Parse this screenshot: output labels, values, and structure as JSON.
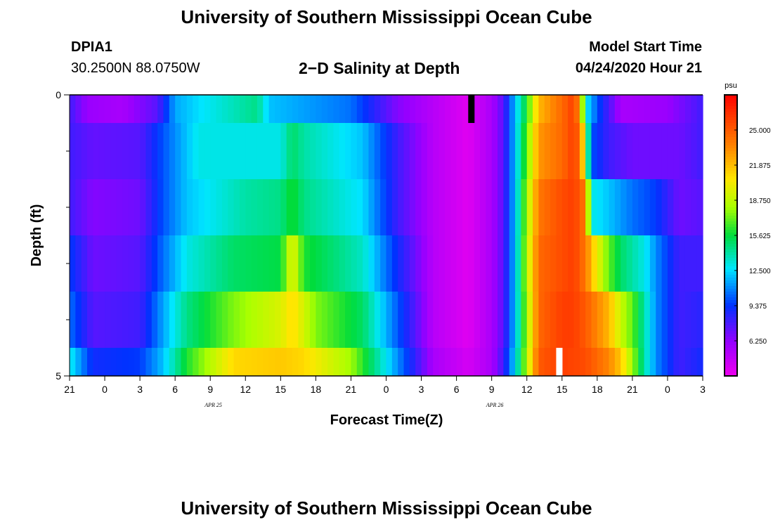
{
  "page": {
    "title": "University of Southern Mississippi Ocean Cube",
    "footer_title": "University of Southern Mississippi Ocean Cube",
    "station": "DPIA1",
    "coords": "30.2500N 88.0750W",
    "subtitle": "2−D Salinity at Depth",
    "start_label": "Model Start Time",
    "start_time": "04/24/2020 Hour 21"
  },
  "chart_data": {
    "type": "heatmap",
    "title": "2-D Salinity at Depth",
    "xlabel": "Forecast Time(Z)",
    "ylabel": "Depth (ft)",
    "x_tick_labels": [
      "21",
      "0",
      "3",
      "6",
      "9",
      "12",
      "15",
      "18",
      "21",
      "0",
      "3",
      "6",
      "9",
      "12",
      "15",
      "18",
      "21",
      "0",
      "3"
    ],
    "x_range_hours": [
      0,
      54
    ],
    "date_labels": [
      {
        "label": "APR 25",
        "hour": 15
      },
      {
        "label": "APR 26",
        "hour": 39
      }
    ],
    "y_tick_labels": [
      "0",
      "5"
    ],
    "y_range_ft": [
      0,
      5
    ],
    "y_minor_ticks_ft": [
      1,
      2,
      3,
      4
    ],
    "colorbar": {
      "unit": "psu",
      "min": 3.125,
      "max": 28.125,
      "tick_labels": [
        "25.000",
        "21.875",
        "18.750",
        "15.625",
        "12.500",
        "9.375",
        "6.250"
      ],
      "tick_values": [
        25.0,
        21.875,
        18.75,
        15.625,
        12.5,
        9.375,
        6.25
      ]
    },
    "rows": [
      {
        "depth_ft": [
          0,
          0.5
        ],
        "keys": [
          {
            "h": 0,
            "v": 8.0
          },
          {
            "h": 1.5,
            "v": 6.0
          },
          {
            "h": 4.5,
            "v": 5.5
          },
          {
            "h": 7.5,
            "v": 7.5
          },
          {
            "h": 9,
            "v": 11.5
          },
          {
            "h": 11,
            "v": 12.5
          },
          {
            "h": 16,
            "v": 14.5
          },
          {
            "h": 17,
            "v": 12.0
          },
          {
            "h": 24,
            "v": 10.5
          },
          {
            "h": 28,
            "v": 6.5
          },
          {
            "h": 31,
            "v": 5.0
          },
          {
            "h": 34,
            "v": 3.6
          },
          {
            "h": 36,
            "v": 5.5
          },
          {
            "h": 37,
            "v": 7.5
          },
          {
            "h": 38,
            "v": 12.0
          },
          {
            "h": 39,
            "v": 16.0
          },
          {
            "h": 40,
            "v": 22.0
          },
          {
            "h": 42,
            "v": 24.5
          },
          {
            "h": 43,
            "v": 26.0
          },
          {
            "h": 43.5,
            "v": 23.0
          },
          {
            "h": 44,
            "v": 13.0
          },
          {
            "h": 45,
            "v": 10.0
          },
          {
            "h": 47,
            "v": 5.5
          },
          {
            "h": 51,
            "v": 6.0
          },
          {
            "h": 54,
            "v": 8.0
          }
        ]
      },
      {
        "depth_ft": [
          0.5,
          1.5
        ],
        "keys": [
          {
            "h": 0,
            "v": 8.0
          },
          {
            "h": 2,
            "v": 7.2
          },
          {
            "h": 6,
            "v": 7.5
          },
          {
            "h": 8,
            "v": 10.0
          },
          {
            "h": 11,
            "v": 13.0
          },
          {
            "h": 18,
            "v": 13.0
          },
          {
            "h": 19,
            "v": 15.0
          },
          {
            "h": 20,
            "v": 14.0
          },
          {
            "h": 25,
            "v": 12.0
          },
          {
            "h": 28,
            "v": 8.0
          },
          {
            "h": 31,
            "v": 5.0
          },
          {
            "h": 34,
            "v": 3.6
          },
          {
            "h": 36,
            "v": 5.5
          },
          {
            "h": 37,
            "v": 7.5
          },
          {
            "h": 38,
            "v": 12.0
          },
          {
            "h": 39,
            "v": 17.0
          },
          {
            "h": 40,
            "v": 23.0
          },
          {
            "h": 42,
            "v": 24.5
          },
          {
            "h": 43,
            "v": 26.0
          },
          {
            "h": 43.6,
            "v": 24.0
          },
          {
            "h": 44.5,
            "v": 10.0
          },
          {
            "h": 46,
            "v": 8.0
          },
          {
            "h": 48,
            "v": 7.0
          },
          {
            "h": 52,
            "v": 7.0
          },
          {
            "h": 54,
            "v": 8.0
          }
        ]
      },
      {
        "depth_ft": [
          1.5,
          2.5
        ],
        "keys": [
          {
            "h": 0,
            "v": 8.0
          },
          {
            "h": 2,
            "v": 6.5
          },
          {
            "h": 6,
            "v": 7.0
          },
          {
            "h": 8,
            "v": 10.0
          },
          {
            "h": 10,
            "v": 12.0
          },
          {
            "h": 15,
            "v": 14.0
          },
          {
            "h": 18,
            "v": 14.5
          },
          {
            "h": 19,
            "v": 16.0
          },
          {
            "h": 20,
            "v": 14.5
          },
          {
            "h": 25,
            "v": 12.5
          },
          {
            "h": 28,
            "v": 8.0
          },
          {
            "h": 31,
            "v": 5.0
          },
          {
            "h": 34,
            "v": 3.6
          },
          {
            "h": 36,
            "v": 5.5
          },
          {
            "h": 37,
            "v": 7.5
          },
          {
            "h": 38,
            "v": 12.0
          },
          {
            "h": 39,
            "v": 18.0
          },
          {
            "h": 40,
            "v": 24.0
          },
          {
            "h": 42,
            "v": 25.5
          },
          {
            "h": 43,
            "v": 26.0
          },
          {
            "h": 44,
            "v": 24.0
          },
          {
            "h": 44.5,
            "v": 13.0
          },
          {
            "h": 46,
            "v": 12.0
          },
          {
            "h": 48,
            "v": 10.5
          },
          {
            "h": 50,
            "v": 9.5
          },
          {
            "h": 52,
            "v": 7.0
          },
          {
            "h": 54,
            "v": 7.5
          }
        ]
      },
      {
        "depth_ft": [
          2.5,
          3.5
        ],
        "keys": [
          {
            "h": 0,
            "v": 9.5
          },
          {
            "h": 2,
            "v": 7.0
          },
          {
            "h": 6,
            "v": 7.5
          },
          {
            "h": 8,
            "v": 10.5
          },
          {
            "h": 10,
            "v": 13.0
          },
          {
            "h": 14,
            "v": 15.0
          },
          {
            "h": 18,
            "v": 15.5
          },
          {
            "h": 19,
            "v": 20.0
          },
          {
            "h": 20,
            "v": 16.0
          },
          {
            "h": 25,
            "v": 13.5
          },
          {
            "h": 28,
            "v": 9.0
          },
          {
            "h": 31,
            "v": 5.0
          },
          {
            "h": 34,
            "v": 3.6
          },
          {
            "h": 36,
            "v": 5.5
          },
          {
            "h": 37,
            "v": 7.5
          },
          {
            "h": 38,
            "v": 12.0
          },
          {
            "h": 39,
            "v": 18.5
          },
          {
            "h": 40,
            "v": 24.5
          },
          {
            "h": 42,
            "v": 25.5
          },
          {
            "h": 43,
            "v": 26.0
          },
          {
            "h": 44,
            "v": 24.0
          },
          {
            "h": 45,
            "v": 20.0
          },
          {
            "h": 46,
            "v": 17.0
          },
          {
            "h": 47,
            "v": 15.0
          },
          {
            "h": 49,
            "v": 13.0
          },
          {
            "h": 50,
            "v": 11.0
          },
          {
            "h": 52,
            "v": 8.0
          },
          {
            "h": 54,
            "v": 8.0
          }
        ]
      },
      {
        "depth_ft": [
          3.5,
          4.5
        ],
        "keys": [
          {
            "h": 0,
            "v": 10.5
          },
          {
            "h": 2,
            "v": 7.5
          },
          {
            "h": 6,
            "v": 8.0
          },
          {
            "h": 8,
            "v": 11.5
          },
          {
            "h": 10,
            "v": 14.5
          },
          {
            "h": 14,
            "v": 17.5
          },
          {
            "h": 18,
            "v": 19.5
          },
          {
            "h": 19,
            "v": 21.0
          },
          {
            "h": 21,
            "v": 17.5
          },
          {
            "h": 25,
            "v": 15.0
          },
          {
            "h": 28,
            "v": 10.0
          },
          {
            "h": 31,
            "v": 5.0
          },
          {
            "h": 34,
            "v": 3.6
          },
          {
            "h": 36,
            "v": 5.5
          },
          {
            "h": 37,
            "v": 7.5
          },
          {
            "h": 38,
            "v": 12.0
          },
          {
            "h": 39,
            "v": 18.0
          },
          {
            "h": 40,
            "v": 24.5
          },
          {
            "h": 42,
            "v": 26.0
          },
          {
            "h": 43,
            "v": 26.0
          },
          {
            "h": 44,
            "v": 25.0
          },
          {
            "h": 46,
            "v": 22.0
          },
          {
            "h": 47,
            "v": 19.0
          },
          {
            "h": 48,
            "v": 17.0
          },
          {
            "h": 49,
            "v": 14.0
          },
          {
            "h": 50,
            "v": 11.0
          },
          {
            "h": 52,
            "v": 8.0
          },
          {
            "h": 54,
            "v": 8.5
          }
        ]
      },
      {
        "depth_ft": [
          4.5,
          5
        ],
        "keys": [
          {
            "h": 0,
            "v": 13.0
          },
          {
            "h": 2,
            "v": 9.0
          },
          {
            "h": 6,
            "v": 9.5
          },
          {
            "h": 8,
            "v": 12.0
          },
          {
            "h": 10,
            "v": 16.0
          },
          {
            "h": 14,
            "v": 21.0
          },
          {
            "h": 18,
            "v": 21.5
          },
          {
            "h": 20,
            "v": 21.0
          },
          {
            "h": 24,
            "v": 18.0
          },
          {
            "h": 28,
            "v": 11.0
          },
          {
            "h": 31,
            "v": 5.5
          },
          {
            "h": 34,
            "v": 4.0
          },
          {
            "h": 36,
            "v": 5.5
          },
          {
            "h": 37,
            "v": 8.0
          },
          {
            "h": 38,
            "v": 12.5
          },
          {
            "h": 39,
            "v": 18.5
          },
          {
            "h": 40,
            "v": 25.0
          },
          {
            "h": 42,
            "v": 26.0
          },
          {
            "h": 44,
            "v": 25.5
          },
          {
            "h": 46,
            "v": 23.5
          },
          {
            "h": 47,
            "v": 21.5
          },
          {
            "h": 48,
            "v": 18.0
          },
          {
            "h": 49,
            "v": 14.0
          },
          {
            "h": 50,
            "v": 11.0
          },
          {
            "h": 52,
            "v": 8.0
          },
          {
            "h": 54,
            "v": 9.0
          }
        ]
      }
    ],
    "markers": [
      {
        "name": "black-marker",
        "hour": 34,
        "depth_ft": [
          0,
          0.5
        ],
        "color": "#000000"
      },
      {
        "name": "white-marker",
        "hour": 41.5,
        "depth_ft": [
          4.5,
          5
        ],
        "color": "#ffffff"
      }
    ]
  }
}
